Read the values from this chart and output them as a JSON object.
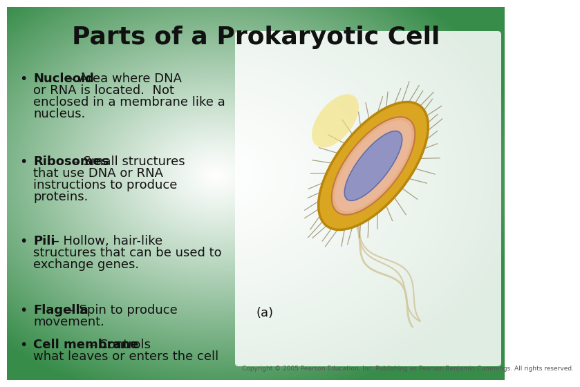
{
  "title": "Parts of a Prokaryotic Cell",
  "title_fontsize": 26,
  "title_color": "#111111",
  "bullet_items": [
    {
      "bold": "Nucleoid",
      "rest": " – Area where DNA\nor RNA is located.  Not\nenclosed in a membrane like a\nnucleus."
    },
    {
      "bold": "Ribosomes",
      "rest": " – Small structures\nthat use DNA or RNA\ninstructions to produce\nproteins."
    },
    {
      "bold": "Pili",
      "rest": " – Hollow, hair-like\nstructures that can be used to\nexchange genes."
    },
    {
      "bold": "Flagella",
      "rest": " – Spin to produce\nmovement."
    },
    {
      "bold": "Cell membrane",
      "rest": " – Controls\nwhat leaves or enters the cell"
    }
  ],
  "bullet_fontsize": 13,
  "text_color": "#111111",
  "caption": "(a)",
  "caption_fontsize": 13,
  "copyright": "Copyright © 2005 Pearson Education, Inc. Publishing as Pearson Benjamin Cummings. All rights reserved.",
  "copyright_fontsize": 6.5,
  "bg_green": [
    0.22,
    0.55,
    0.29
  ],
  "bg_white": [
    1.0,
    1.0,
    1.0
  ],
  "cell_outer_color": "#DAA520",
  "cell_outer_edge": "#C8920A",
  "cell_inner_color": "#E8B080",
  "cell_inner_edge": "#C07848",
  "cell_nucleoid_color": "#8890C8",
  "cell_nucleoid_edge": "#5060A0",
  "pili_color": "#A09878",
  "flagella_color": "#D4C8A0"
}
